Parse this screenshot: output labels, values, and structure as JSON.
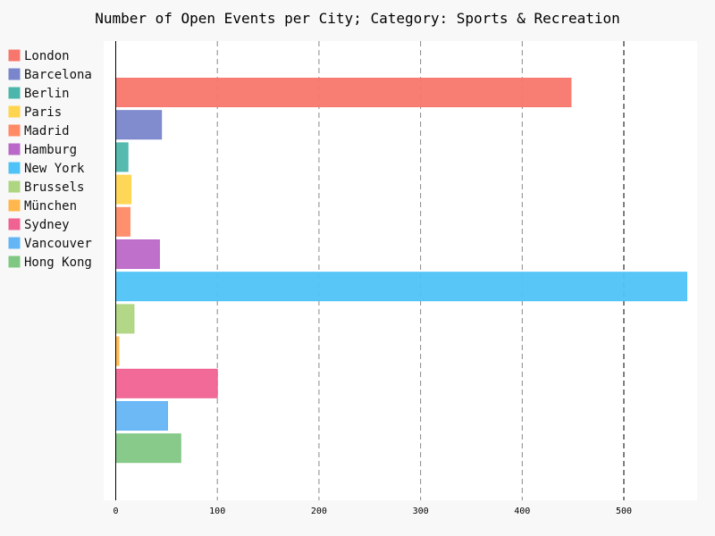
{
  "chart_data": {
    "type": "bar",
    "orientation": "horizontal",
    "title": "Number of Open Events per City; Category: Sports & Recreation",
    "xlabel": "",
    "ylabel": "",
    "xlim": [
      0,
      560
    ],
    "x_ticks": [
      0,
      100,
      200,
      300,
      400,
      500
    ],
    "grid": "vertical-dashed",
    "legend_position": "left",
    "categories": [
      "London",
      "Barcelona",
      "Berlin",
      "Paris",
      "Madrid",
      "Hamburg",
      "New York",
      "Brussels",
      "München",
      "Sydney",
      "Vancouver",
      "Hong Kong"
    ],
    "values": [
      448,
      45,
      12,
      15,
      14,
      43,
      562,
      18,
      3,
      100,
      51,
      64
    ],
    "colors": [
      "#f8776d",
      "#7986cb",
      "#4db6ac",
      "#ffd54f",
      "#ff8a65",
      "#ba68c8",
      "#4fc3f7",
      "#aed581",
      "#ffb74d",
      "#f06292",
      "#64b5f6",
      "#81c784"
    ]
  }
}
